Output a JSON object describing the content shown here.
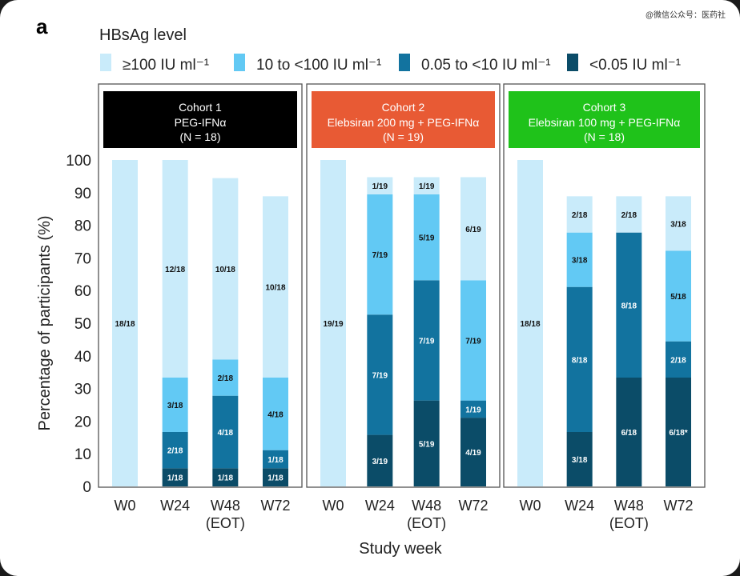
{
  "panel_letter": "a",
  "watermark": "@微信公众号：医药社",
  "chart_data": {
    "type": "bar",
    "stacked": true,
    "title": "HBsAg level",
    "ylabel": "Percentage of participants (%)",
    "xlabel": "Study week",
    "ylim": [
      0,
      100
    ],
    "yticks": [
      0,
      10,
      20,
      30,
      40,
      50,
      60,
      70,
      80,
      90,
      100
    ],
    "grid": false,
    "legend_placement": "top",
    "categories": [
      "W0",
      "W24",
      "W48\n(EOT)",
      "W72"
    ],
    "series": [
      {
        "name": "<0.05 IU ml⁻¹",
        "color": "#0b4c68"
      },
      {
        "name": "0.05 to <10 IU ml⁻¹",
        "color": "#12739f"
      },
      {
        "name": "10 to <100 IU ml⁻¹",
        "color": "#62c9f4"
      },
      {
        "name": "≥100 IU ml⁻¹",
        "color": "#c9ebfa"
      }
    ],
    "cohorts": [
      {
        "title": "Cohort 1",
        "regimen": "PEG-IFNα",
        "n_label": "(N = 18)",
        "N": 18,
        "header_color": "#000000",
        "bars": [
          {
            "counts": [
              0,
              0,
              0,
              18
            ],
            "labels": [
              "",
              "",
              "",
              "18/18"
            ]
          },
          {
            "counts": [
              1,
              2,
              3,
              12
            ],
            "labels": [
              "1/18",
              "2/18",
              "3/18",
              "12/18"
            ]
          },
          {
            "counts": [
              1,
              4,
              2,
              10
            ],
            "labels": [
              "1/18",
              "4/18",
              "2/18",
              "10/18"
            ]
          },
          {
            "counts": [
              1,
              1,
              4,
              10
            ],
            "labels": [
              "1/18",
              "1/18",
              "4/18",
              "10/18"
            ]
          }
        ]
      },
      {
        "title": "Cohort 2",
        "regimen": "Elebsiran 200 mg + PEG-IFNα",
        "n_label": "(N = 19)",
        "N": 19,
        "header_color": "#e85a34",
        "bars": [
          {
            "counts": [
              0,
              0,
              0,
              19
            ],
            "labels": [
              "",
              "",
              "",
              "19/19"
            ]
          },
          {
            "counts": [
              3,
              7,
              7,
              1
            ],
            "labels": [
              "3/19",
              "7/19",
              "7/19",
              "1/19"
            ]
          },
          {
            "counts": [
              5,
              7,
              5,
              1
            ],
            "labels": [
              "5/19",
              "7/19",
              "5/19",
              "1/19"
            ]
          },
          {
            "counts": [
              4,
              1,
              7,
              6
            ],
            "labels": [
              "4/19",
              "1/19",
              "7/19",
              "6/19"
            ]
          }
        ]
      },
      {
        "title": "Cohort 3",
        "regimen": "Elebsiran 100 mg + PEG-IFNα",
        "n_label": "(N = 18)",
        "N": 18,
        "header_color": "#1fc21a",
        "bars": [
          {
            "counts": [
              0,
              0,
              0,
              18
            ],
            "labels": [
              "",
              "",
              "",
              "18/18"
            ]
          },
          {
            "counts": [
              3,
              8,
              3,
              2
            ],
            "labels": [
              "3/18",
              "8/18",
              "3/18",
              "2/18"
            ]
          },
          {
            "counts": [
              6,
              8,
              0,
              2
            ],
            "labels": [
              "6/18",
              "8/18",
              "",
              "2/18"
            ]
          },
          {
            "counts": [
              6,
              2,
              5,
              3
            ],
            "labels": [
              "6/18*",
              "2/18",
              "5/18",
              "3/18"
            ]
          }
        ]
      }
    ]
  }
}
